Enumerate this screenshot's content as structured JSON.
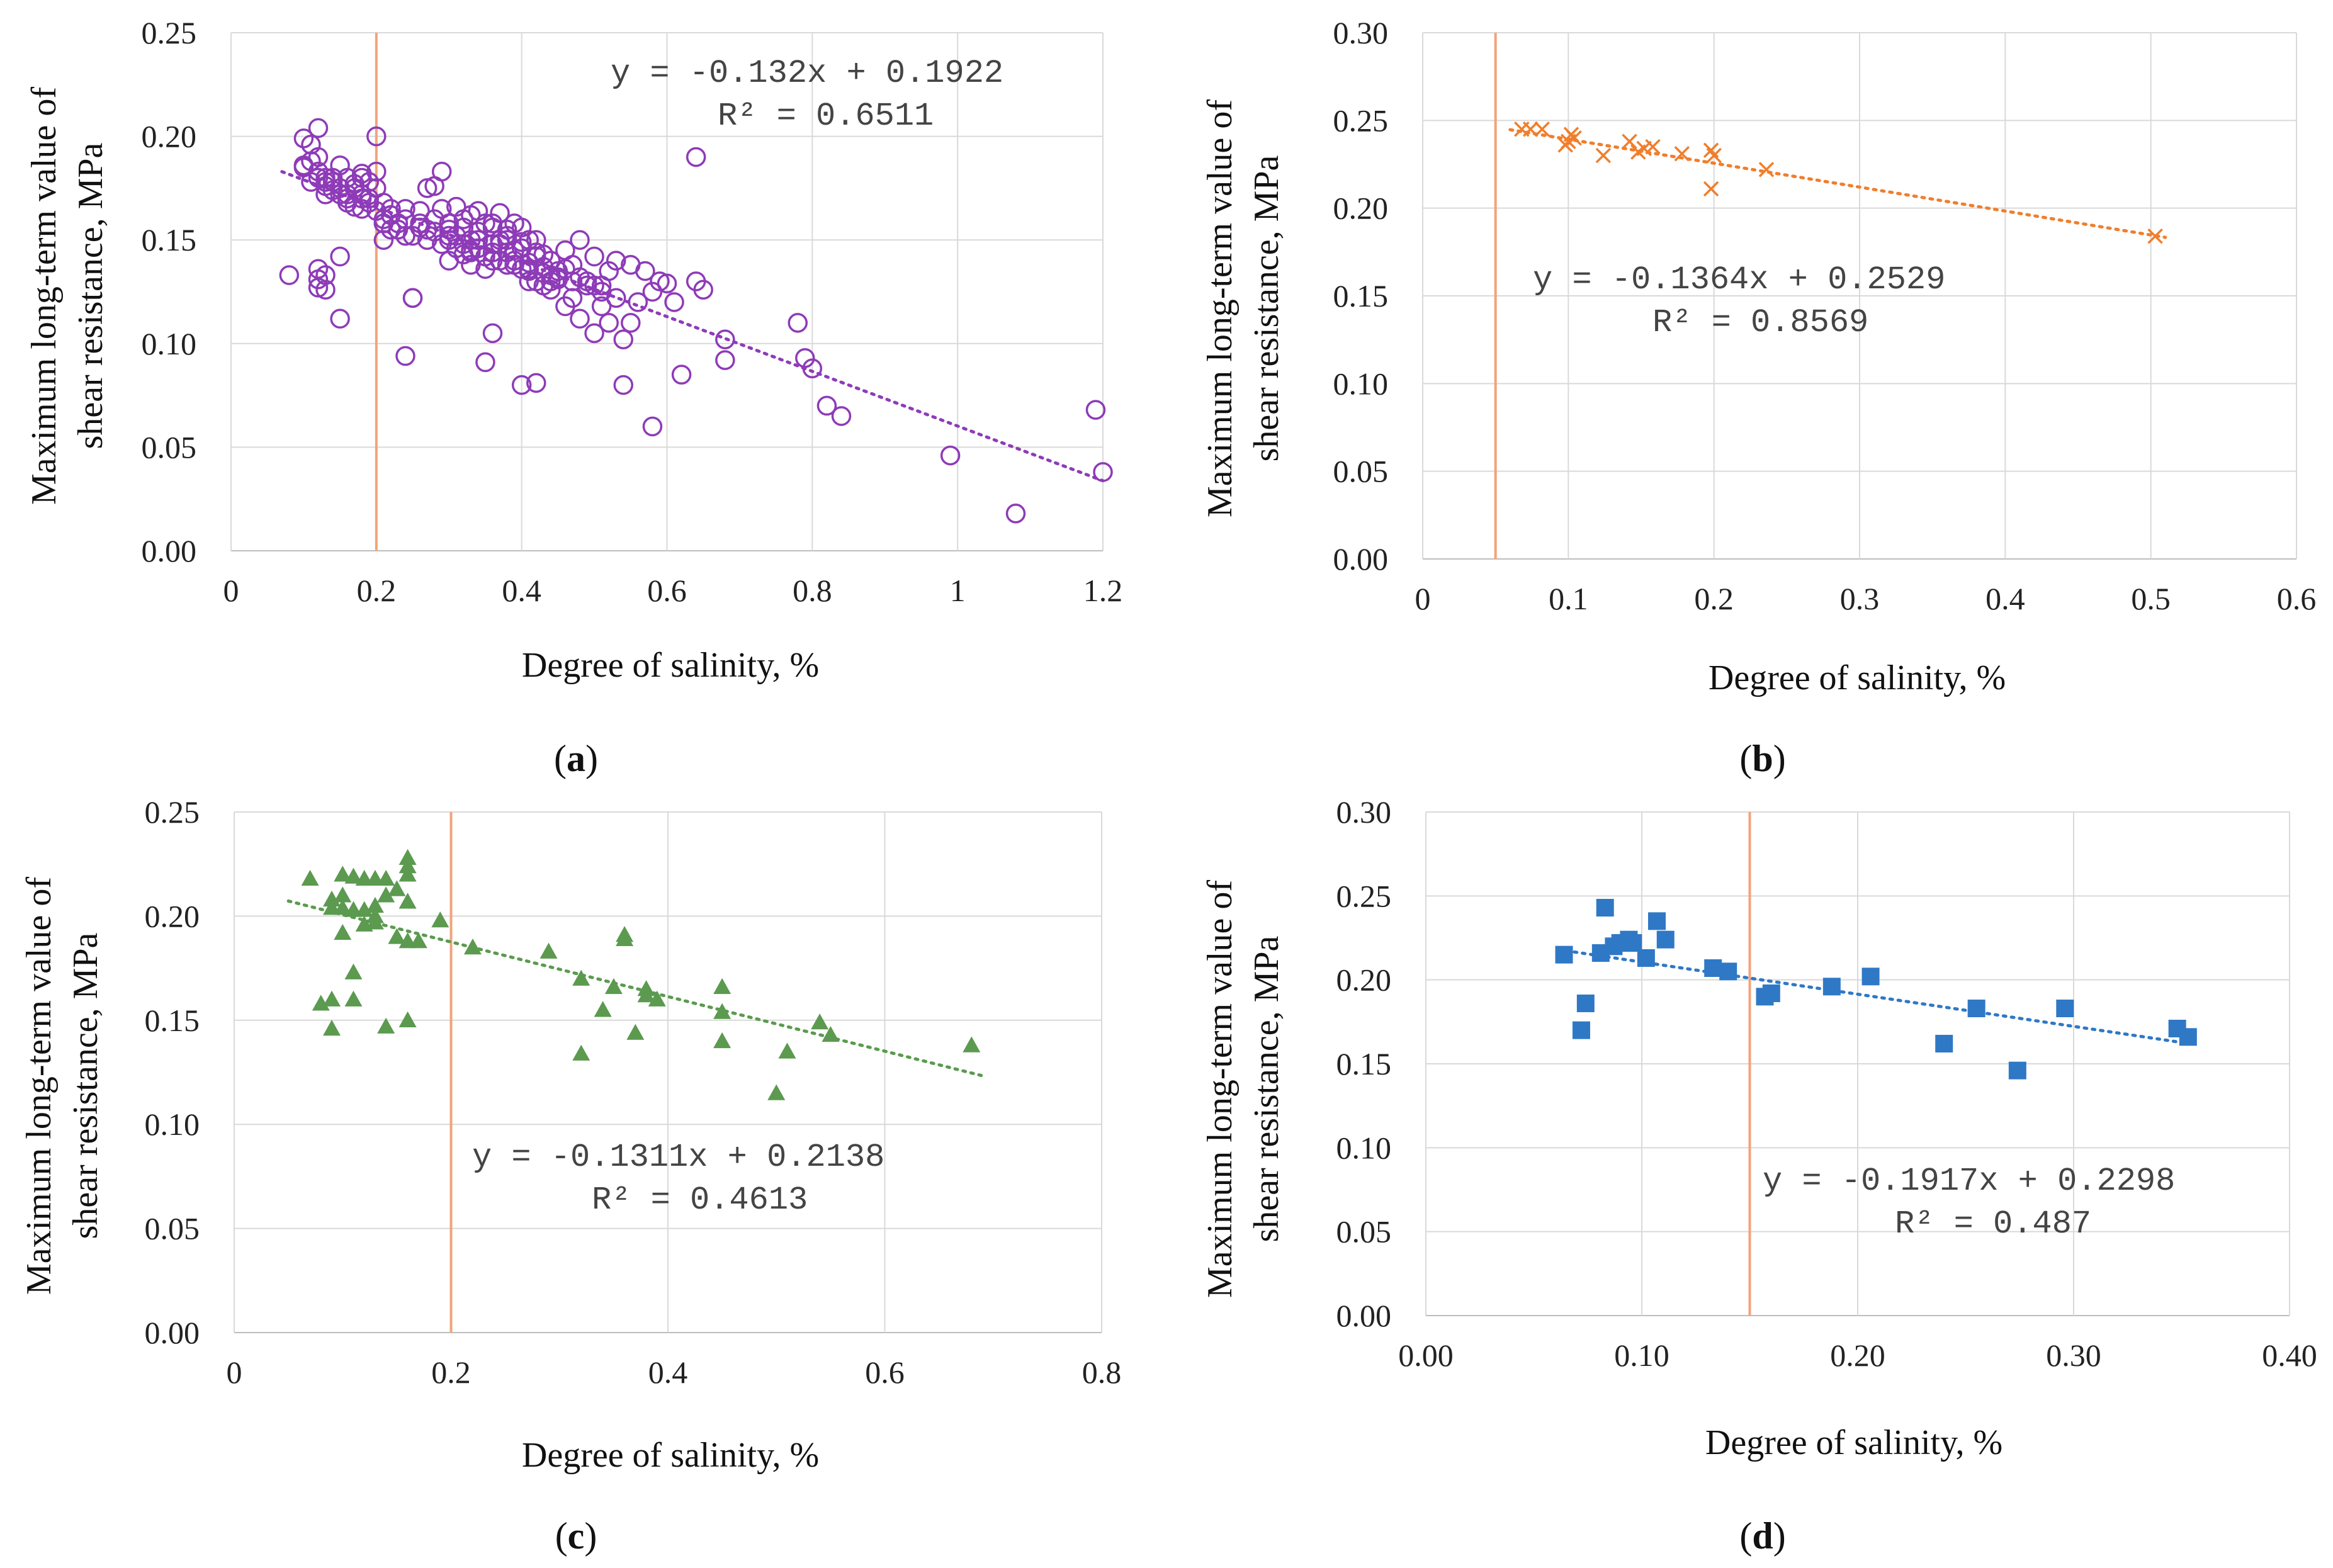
{
  "chart_data": [
    {
      "id": "a",
      "type": "scatter",
      "caption": "a",
      "xlabel": "Degree of salinity, %",
      "ylabel_line1": "Maximum long-term value of",
      "ylabel_line2": "shear resistance, MPa",
      "xlim": [
        0,
        1.2
      ],
      "ylim": [
        0,
        0.25
      ],
      "xticks": [
        "0",
        "0.2",
        "0.4",
        "0.6",
        "0.8",
        "1",
        "1.2"
      ],
      "yticks": [
        "0.00",
        "0.05",
        "0.10",
        "0.15",
        "0.20",
        "0.25"
      ],
      "grid": true,
      "marker": "circle-open",
      "color": "#8e3bb8",
      "reference_line_x": 0.2,
      "reference_line_color": "#f2a37a",
      "trendline": {
        "slope": -0.132,
        "intercept": 0.1922,
        "x_from": 0.07,
        "x_to": 1.2
      },
      "equation": "y = -0.132x + 0.1922",
      "r2": "R² = 0.6511",
      "x": [
        0.08,
        0.1,
        0.1,
        0.11,
        0.11,
        0.12,
        0.12,
        0.12,
        0.13,
        0.13,
        0.13,
        0.14,
        0.14,
        0.15,
        0.15,
        0.15,
        0.16,
        0.16,
        0.17,
        0.17,
        0.18,
        0.18,
        0.18,
        0.19,
        0.19,
        0.2,
        0.2,
        0.21,
        0.21,
        0.21,
        0.22,
        0.22,
        0.23,
        0.24,
        0.25,
        0.26,
        0.27,
        0.27,
        0.28,
        0.28,
        0.29,
        0.29,
        0.3,
        0.3,
        0.31,
        0.31,
        0.32,
        0.32,
        0.33,
        0.33,
        0.34,
        0.34,
        0.35,
        0.35,
        0.36,
        0.36,
        0.37,
        0.37,
        0.38,
        0.38,
        0.39,
        0.39,
        0.4,
        0.4,
        0.41,
        0.41,
        0.42,
        0.42,
        0.43,
        0.43,
        0.44,
        0.44,
        0.45,
        0.46,
        0.46,
        0.47,
        0.48,
        0.48,
        0.49,
        0.5,
        0.5,
        0.51,
        0.52,
        0.52,
        0.53,
        0.54,
        0.55,
        0.56,
        0.57,
        0.58,
        0.59,
        0.6,
        0.61,
        0.64,
        0.64,
        0.65,
        0.68,
        0.68,
        0.78,
        0.79,
        0.8,
        0.82,
        0.84,
        0.99,
        1.08,
        1.19,
        1.2,
        0.12,
        0.12,
        0.13,
        0.15,
        0.24,
        0.25,
        0.35,
        0.36,
        0.4,
        0.42,
        0.54,
        0.58,
        0.62,
        0.21,
        0.22,
        0.24,
        0.26,
        0.3,
        0.33,
        0.36,
        0.38,
        0.41,
        0.44,
        0.47,
        0.51,
        0.55,
        0.1,
        0.11,
        0.12,
        0.13,
        0.14,
        0.15,
        0.16,
        0.17,
        0.18,
        0.19,
        0.2,
        0.21,
        0.23,
        0.25,
        0.27,
        0.29,
        0.31,
        0.33,
        0.35,
        0.37,
        0.39,
        0.41,
        0.43,
        0.45,
        0.47,
        0.49,
        0.51,
        0.53,
        0.12,
        0.13,
        0.16,
        0.18,
        0.2,
        0.22,
        0.24,
        0.26,
        0.28,
        0.3,
        0.32,
        0.34,
        0.36,
        0.38,
        0.4,
        0.42,
        0.44,
        0.46,
        0.48,
        0.5,
        0.3,
        0.32,
        0.34,
        0.36,
        0.38,
        0.4,
        0.42,
        0.44,
        0.33,
        0.35,
        0.37,
        0.39,
        0.41,
        0.43,
        0.45
      ],
      "y": [
        0.133,
        0.199,
        0.186,
        0.196,
        0.178,
        0.204,
        0.18,
        0.127,
        0.172,
        0.133,
        0.176,
        0.18,
        0.174,
        0.186,
        0.172,
        0.112,
        0.18,
        0.17,
        0.175,
        0.166,
        0.18,
        0.172,
        0.165,
        0.178,
        0.17,
        0.2,
        0.183,
        0.168,
        0.16,
        0.15,
        0.165,
        0.155,
        0.158,
        0.152,
        0.122,
        0.164,
        0.175,
        0.155,
        0.176,
        0.16,
        0.183,
        0.165,
        0.158,
        0.15,
        0.166,
        0.152,
        0.16,
        0.148,
        0.162,
        0.15,
        0.164,
        0.146,
        0.158,
        0.142,
        0.156,
        0.144,
        0.163,
        0.15,
        0.155,
        0.138,
        0.158,
        0.14,
        0.156,
        0.136,
        0.15,
        0.135,
        0.15,
        0.13,
        0.143,
        0.128,
        0.14,
        0.126,
        0.135,
        0.145,
        0.118,
        0.138,
        0.15,
        0.112,
        0.13,
        0.142,
        0.105,
        0.128,
        0.135,
        0.11,
        0.14,
        0.102,
        0.138,
        0.12,
        0.135,
        0.125,
        0.13,
        0.129,
        0.12,
        0.19,
        0.13,
        0.126,
        0.102,
        0.092,
        0.11,
        0.093,
        0.088,
        0.07,
        0.065,
        0.046,
        0.018,
        0.068,
        0.038,
        0.136,
        0.131,
        0.126,
        0.142,
        0.094,
        0.122,
        0.091,
        0.105,
        0.08,
        0.081,
        0.08,
        0.06,
        0.085,
        0.158,
        0.162,
        0.165,
        0.156,
        0.152,
        0.145,
        0.14,
        0.144,
        0.13,
        0.13,
        0.122,
        0.118,
        0.11,
        0.185,
        0.188,
        0.183,
        0.18,
        0.178,
        0.175,
        0.172,
        0.177,
        0.17,
        0.168,
        0.164,
        0.158,
        0.155,
        0.152,
        0.15,
        0.148,
        0.146,
        0.144,
        0.142,
        0.14,
        0.138,
        0.136,
        0.134,
        0.132,
        0.13,
        0.128,
        0.125,
        0.122,
        0.19,
        0.178,
        0.168,
        0.182,
        0.175,
        0.162,
        0.16,
        0.158,
        0.154,
        0.155,
        0.156,
        0.15,
        0.148,
        0.15,
        0.146,
        0.142,
        0.14,
        0.136,
        0.132,
        0.128,
        0.14,
        0.143,
        0.154,
        0.158,
        0.152,
        0.149,
        0.144,
        0.133,
        0.138,
        0.136,
        0.148,
        0.145,
        0.139,
        0.137,
        0.131
      ]
    },
    {
      "id": "b",
      "type": "scatter",
      "caption": "b",
      "xlabel": "Degree of salinity, %",
      "ylabel_line1": "Maximum long-term value of",
      "ylabel_line2": "shear resistance, MPa",
      "xlim": [
        0,
        0.6
      ],
      "ylim": [
        0,
        0.3
      ],
      "xticks": [
        "0",
        "0.1",
        "0.2",
        "0.3",
        "0.4",
        "0.5",
        "0.6"
      ],
      "yticks": [
        "0.00",
        "0.05",
        "0.10",
        "0.15",
        "0.20",
        "0.25",
        "0.30"
      ],
      "grid": true,
      "marker": "x",
      "color": "#f07e2c",
      "reference_line_x": 0.05,
      "reference_line_color": "#f2a37a",
      "trendline": {
        "slope": -0.1364,
        "intercept": 0.2529,
        "x_from": 0.06,
        "x_to": 0.51
      },
      "equation": "y = -0.1364x + 0.2529",
      "r2": "R² = 0.8569",
      "x": [
        0.068,
        0.074,
        0.082,
        0.098,
        0.1,
        0.102,
        0.104,
        0.124,
        0.142,
        0.148,
        0.152,
        0.158,
        0.178,
        0.198,
        0.2,
        0.198,
        0.236,
        0.503
      ],
      "y": [
        0.245,
        0.245,
        0.245,
        0.236,
        0.238,
        0.242,
        0.24,
        0.23,
        0.238,
        0.232,
        0.234,
        0.235,
        0.231,
        0.233,
        0.23,
        0.211,
        0.222,
        0.184
      ]
    },
    {
      "id": "c",
      "type": "scatter",
      "caption": "c",
      "xlabel": "Degree of salinity, %",
      "ylabel_line1": "Maximum long-term value of",
      "ylabel_line2": "shear resistance, MPa",
      "xlim": [
        0,
        0.8
      ],
      "ylim": [
        0,
        0.25
      ],
      "xticks": [
        "0",
        "0.2",
        "0.4",
        "0.6",
        "0.8"
      ],
      "yticks": [
        "0.00",
        "0.05",
        "0.10",
        "0.15",
        "0.20",
        "0.25"
      ],
      "grid": true,
      "marker": "triangle",
      "color": "#5b9a4f",
      "reference_line_x": 0.2,
      "reference_line_color": "#f2a37a",
      "trendline": {
        "slope": -0.1311,
        "intercept": 0.2138,
        "x_from": 0.05,
        "x_to": 0.69
      },
      "equation": "y = -0.1311x + 0.2138",
      "r2": "R² = 0.4613",
      "x": [
        0.07,
        0.08,
        0.09,
        0.09,
        0.09,
        0.1,
        0.1,
        0.1,
        0.1,
        0.11,
        0.11,
        0.11,
        0.12,
        0.12,
        0.12,
        0.13,
        0.13,
        0.13,
        0.14,
        0.14,
        0.14,
        0.15,
        0.15,
        0.16,
        0.16,
        0.16,
        0.16,
        0.16,
        0.16,
        0.17,
        0.19,
        0.22,
        0.29,
        0.32,
        0.32,
        0.34,
        0.35,
        0.36,
        0.36,
        0.37,
        0.38,
        0.38,
        0.39,
        0.45,
        0.45,
        0.45,
        0.5,
        0.51,
        0.54,
        0.55,
        0.68,
        0.09,
        0.11,
        0.13
      ],
      "y": [
        0.218,
        0.158,
        0.16,
        0.146,
        0.204,
        0.192,
        0.21,
        0.22,
        0.204,
        0.173,
        0.16,
        0.219,
        0.218,
        0.196,
        0.203,
        0.218,
        0.197,
        0.205,
        0.147,
        0.21,
        0.218,
        0.19,
        0.213,
        0.228,
        0.224,
        0.22,
        0.207,
        0.188,
        0.15,
        0.188,
        0.198,
        0.185,
        0.183,
        0.17,
        0.134,
        0.155,
        0.166,
        0.191,
        0.189,
        0.144,
        0.165,
        0.162,
        0.16,
        0.166,
        0.154,
        0.14,
        0.115,
        0.135,
        0.149,
        0.143,
        0.138,
        0.208,
        0.203,
        0.2
      ]
    },
    {
      "id": "d",
      "type": "scatter",
      "caption": "d",
      "xlabel": "Degree of salinity, %",
      "ylabel_line1": "Maximum long-term value of",
      "ylabel_line2": "shear resistance, MPa",
      "xlim": [
        0,
        0.4
      ],
      "ylim": [
        0,
        0.3
      ],
      "xticks": [
        "0.00",
        "0.10",
        "0.20",
        "0.30",
        "0.40"
      ],
      "yticks": [
        "0.00",
        "0.05",
        "0.10",
        "0.15",
        "0.20",
        "0.25",
        "0.30"
      ],
      "grid": true,
      "marker": "square",
      "color": "#2f78c6",
      "reference_line_x": 0.15,
      "reference_line_color": "#f2a37a",
      "trendline": {
        "slope": -0.1917,
        "intercept": 0.2298,
        "x_from": 0.065,
        "x_to": 0.355
      },
      "equation": "y = -0.1917x + 0.2298",
      "r2": "R² = 0.487",
      "x": [
        0.064,
        0.072,
        0.074,
        0.081,
        0.083,
        0.087,
        0.09,
        0.094,
        0.096,
        0.102,
        0.107,
        0.111,
        0.133,
        0.14,
        0.157,
        0.16,
        0.188,
        0.206,
        0.24,
        0.255,
        0.274,
        0.296,
        0.348,
        0.353
      ],
      "y": [
        0.215,
        0.17,
        0.186,
        0.216,
        0.243,
        0.22,
        0.222,
        0.224,
        0.222,
        0.213,
        0.235,
        0.224,
        0.207,
        0.205,
        0.19,
        0.192,
        0.196,
        0.202,
        0.162,
        0.183,
        0.146,
        0.183,
        0.171,
        0.166
      ]
    }
  ]
}
